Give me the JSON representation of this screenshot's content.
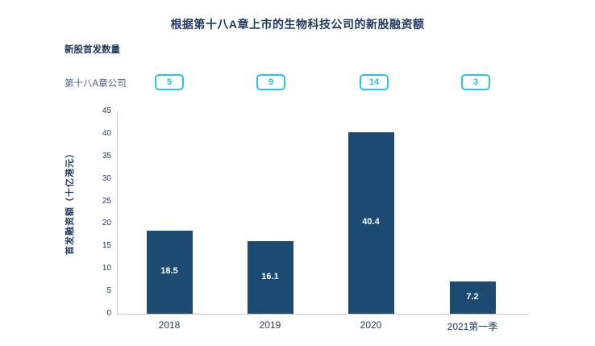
{
  "page": {
    "title": "根据第十八A章上市的生物科技公司的新股融资额",
    "counts_heading": "新股首发数量",
    "chapter_label": "第十八A章公司"
  },
  "chart_data": {
    "type": "bar",
    "title": "根据第十八A章上市的生物科技公司的新股融资额",
    "categories": [
      "2018",
      "2019",
      "2020",
      "2021第一季"
    ],
    "values": [
      18.5,
      16.1,
      40.4,
      7.2
    ],
    "bar_labels": [
      "18.5",
      "16.1",
      "40.4",
      "7.2"
    ],
    "counts_heading": "新股首发数量",
    "counts_row_label": "第十八A章公司",
    "listing_counts": [
      "5",
      "9",
      "14",
      "3"
    ],
    "ylabel": "首发融资额（十亿港元）",
    "ylim": [
      0,
      45
    ],
    "ytick_step": 5,
    "yticks": [
      0,
      5,
      10,
      15,
      20,
      25,
      30,
      35,
      40,
      45
    ],
    "grid": false,
    "legend_position": "none",
    "colors": {
      "bar": "#1b4a73",
      "accent": "#29c5d9",
      "text": "#1f3a5f",
      "muted_text": "#46617e",
      "axis": "#c9c9c9",
      "bar_value_text": "#ffffff"
    }
  }
}
